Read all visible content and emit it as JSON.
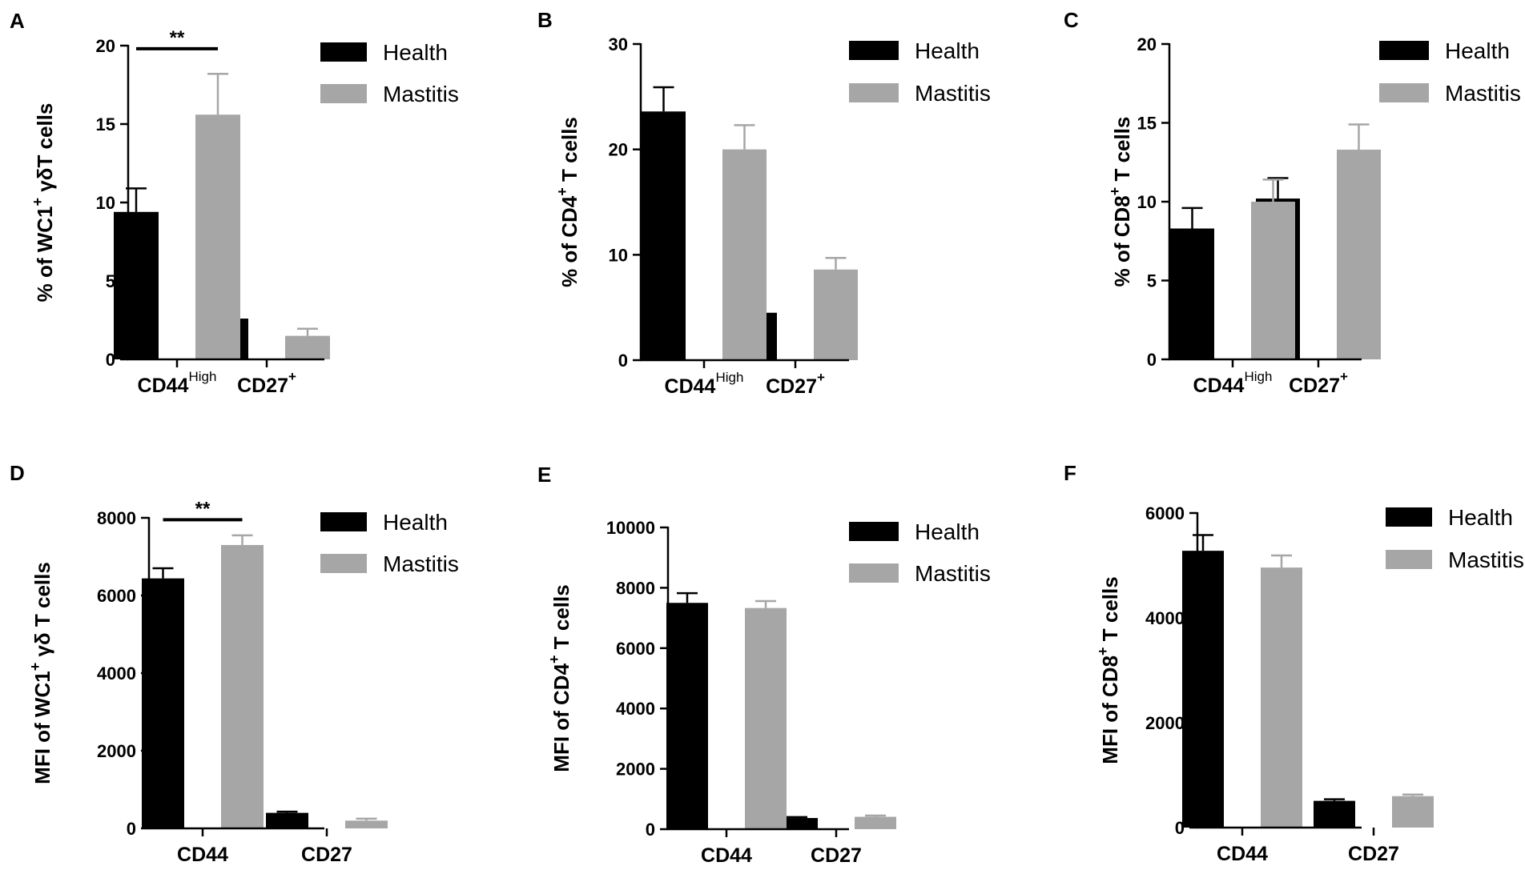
{
  "colors": {
    "health": "#000000",
    "mastitis": "#a6a6a6",
    "axis": "#000000"
  },
  "chart_data": [
    {
      "panel": "A",
      "type": "bar",
      "ylabel_parts": [
        "% of WC1",
        "+",
        " γδT cells"
      ],
      "yticks": [
        "0",
        "5",
        "10",
        "15",
        "20"
      ],
      "ylim": [
        0,
        20
      ],
      "categories": [
        {
          "base": "CD44",
          "sup": "High"
        },
        {
          "base": "CD27",
          "sup": "+"
        }
      ],
      "series": [
        {
          "name": "Health",
          "values": [
            9.4,
            2.6
          ],
          "errors": [
            1.5,
            0.4
          ]
        },
        {
          "name": "Mastitis",
          "values": [
            15.6,
            1.5
          ],
          "errors": [
            2.6,
            0.45
          ]
        }
      ],
      "annotation": {
        "text": "**",
        "category_index": 0,
        "y": 19.8
      }
    },
    {
      "panel": "B",
      "type": "bar",
      "ylabel_parts": [
        "% of CD4",
        "+",
        " T cells"
      ],
      "yticks": [
        "0",
        "10",
        "20",
        "30"
      ],
      "ylim": [
        0,
        30
      ],
      "categories": [
        {
          "base": "CD44",
          "sup": "High"
        },
        {
          "base": "CD27",
          "sup": "+"
        }
      ],
      "series": [
        {
          "name": "Health",
          "values": [
            23.6,
            4.5
          ],
          "errors": [
            2.3,
            0.6
          ]
        },
        {
          "name": "Mastitis",
          "values": [
            20.0,
            8.6
          ],
          "errors": [
            2.3,
            1.1
          ]
        }
      ]
    },
    {
      "panel": "C",
      "type": "bar",
      "ylabel_parts": [
        "% of CD8",
        "+",
        " T cells"
      ],
      "yticks": [
        "0",
        "5",
        "10",
        "15",
        "20"
      ],
      "ylim": [
        0,
        20
      ],
      "categories": [
        {
          "base": "CD44",
          "sup": "High"
        },
        {
          "base": "CD27",
          "sup": "+"
        }
      ],
      "series": [
        {
          "name": "Health",
          "values": [
            8.3,
            10.2
          ],
          "errors": [
            1.3,
            1.3
          ]
        },
        {
          "name": "Mastitis",
          "values": [
            10.0,
            13.3
          ],
          "errors": [
            1.4,
            1.6
          ]
        }
      ]
    },
    {
      "panel": "D",
      "type": "bar",
      "ylabel_parts": [
        "MFI of WC1",
        "+",
        " γδ T cells"
      ],
      "yticks": [
        "0",
        "2000",
        "4000",
        "6000",
        "8000"
      ],
      "ylim": [
        0,
        8000
      ],
      "categories": [
        {
          "base": "CD44",
          "sup": ""
        },
        {
          "base": "CD27",
          "sup": ""
        }
      ],
      "series": [
        {
          "name": "Health",
          "values": [
            6440,
            400
          ],
          "errors": [
            260,
            30
          ]
        },
        {
          "name": "Mastitis",
          "values": [
            7300,
            200
          ],
          "errors": [
            250,
            50
          ]
        }
      ],
      "annotation": {
        "text": "**",
        "category_index": 0,
        "y": 7950
      }
    },
    {
      "panel": "E",
      "type": "bar",
      "ylabel_parts": [
        "MFI of CD4",
        "+",
        "  T cells"
      ],
      "yticks": [
        "0",
        "2000",
        "4000",
        "6000",
        "8000",
        "10000"
      ],
      "ylim": [
        0,
        10000
      ],
      "categories": [
        {
          "base": "CD44",
          "sup": ""
        },
        {
          "base": "CD27",
          "sup": ""
        }
      ],
      "series": [
        {
          "name": "Health",
          "values": [
            7500,
            370
          ],
          "errors": [
            320,
            30
          ]
        },
        {
          "name": "Mastitis",
          "values": [
            7330,
            410
          ],
          "errors": [
            230,
            40
          ]
        }
      ]
    },
    {
      "panel": "F",
      "type": "bar",
      "ylabel_parts": [
        "MFI of CD8",
        "+",
        "  T cells"
      ],
      "yticks": [
        "0",
        "2000",
        "4000",
        "6000"
      ],
      "ylim": [
        0,
        6000
      ],
      "categories": [
        {
          "base": "CD44",
          "sup": ""
        },
        {
          "base": "CD27",
          "sup": ""
        }
      ],
      "series": [
        {
          "name": "Health",
          "values": [
            5280,
            510
          ],
          "errors": [
            300,
            30
          ]
        },
        {
          "name": "Mastitis",
          "values": [
            4960,
            600
          ],
          "errors": [
            230,
            30
          ]
        }
      ]
    }
  ]
}
